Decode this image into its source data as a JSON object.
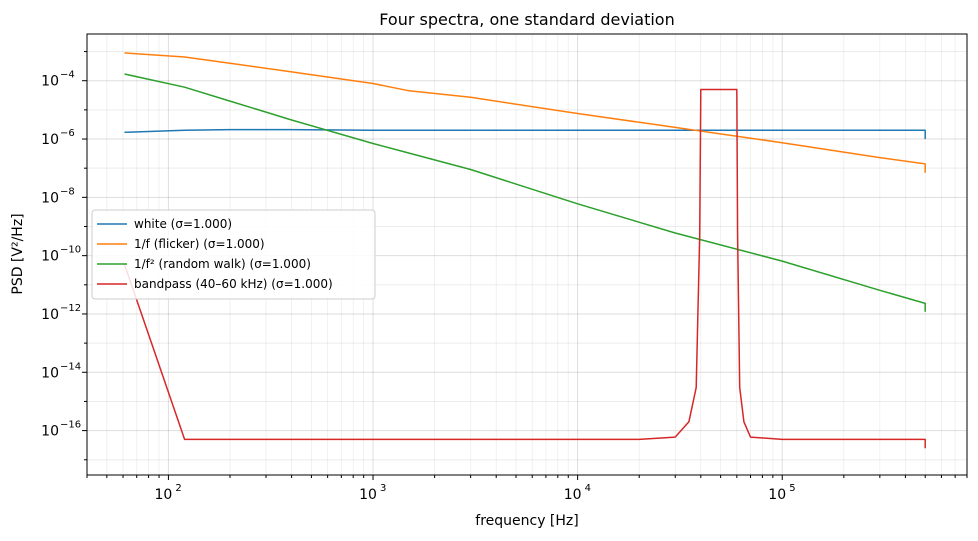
{
  "chart_data": {
    "type": "line",
    "title": "Four spectra, one standard deviation",
    "xlabel": "frequency [Hz]",
    "ylabel": "PSD  [V²/Hz]",
    "xscale": "log",
    "yscale": "log",
    "xlim": [
      40,
      800000
    ],
    "ylim": [
      3e-18,
      0.004
    ],
    "grid": "on (major and minor, both axes)",
    "legend_position": "center-left",
    "x_ticks": [
      {
        "value": 100,
        "base": "10",
        "exp": "2"
      },
      {
        "value": 1000,
        "base": "10",
        "exp": "3"
      },
      {
        "value": 10000,
        "base": "10",
        "exp": "4"
      },
      {
        "value": 100000,
        "base": "10",
        "exp": "5"
      }
    ],
    "y_ticks": [
      {
        "value": 1e-16,
        "base": "10",
        "exp": "−16"
      },
      {
        "value": 1e-14,
        "base": "10",
        "exp": "−14"
      },
      {
        "value": 1e-12,
        "base": "10",
        "exp": "−12"
      },
      {
        "value": 1e-10,
        "base": "10",
        "exp": "−10"
      },
      {
        "value": 1e-08,
        "base": "10",
        "exp": "−8"
      },
      {
        "value": 1e-06,
        "base": "10",
        "exp": "−6"
      },
      {
        "value": 0.0001,
        "base": "10",
        "exp": "−4"
      }
    ],
    "series": [
      {
        "name": "white  (σ=1.000)",
        "color": "#1f77b4",
        "points": [
          [
            61,
            1.7e-06
          ],
          [
            120,
            2e-06
          ],
          [
            200,
            2.1e-06
          ],
          [
            400,
            2.1e-06
          ],
          [
            1000,
            2e-06
          ],
          [
            3000,
            2e-06
          ],
          [
            10000,
            2e-06
          ],
          [
            30000,
            2e-06
          ],
          [
            100000,
            2e-06
          ],
          [
            300000,
            2e-06
          ],
          [
            500000,
            2e-06
          ],
          [
            500000,
            1e-06
          ]
        ]
      },
      {
        "name": "1/f (flicker)  (σ=1.000)",
        "color": "#ff7f0e",
        "points": [
          [
            61,
            0.0009
          ],
          [
            120,
            0.00065
          ],
          [
            200,
            0.0004
          ],
          [
            400,
            0.0002
          ],
          [
            1000,
            8e-05
          ],
          [
            1500,
            4.5e-05
          ],
          [
            3000,
            2.7e-05
          ],
          [
            10000,
            7.5e-06
          ],
          [
            30000,
            2.5e-06
          ],
          [
            100000,
            7.5e-07
          ],
          [
            300000,
            2.3e-07
          ],
          [
            500000,
            1.4e-07
          ],
          [
            500000,
            7e-08
          ]
        ]
      },
      {
        "name": "1/f² (random walk)  (σ=1.000)",
        "color": "#2ca02c",
        "points": [
          [
            61,
            0.00017
          ],
          [
            120,
            6e-05
          ],
          [
            200,
            2e-05
          ],
          [
            400,
            4.5e-06
          ],
          [
            1000,
            7e-07
          ],
          [
            1500,
            3.3e-07
          ],
          [
            3000,
            9e-08
          ],
          [
            10000,
            6e-09
          ],
          [
            30000,
            6e-10
          ],
          [
            100000,
            6.5e-11
          ],
          [
            300000,
            6.5e-12
          ],
          [
            500000,
            2.3e-12
          ],
          [
            500000,
            1.2e-12
          ]
        ]
      },
      {
        "name": "bandpass (40–60 kHz)  (σ=1.000)",
        "color": "#d62728",
        "points": [
          [
            61,
            5e-11
          ],
          [
            120,
            5e-17
          ],
          [
            500,
            5e-17
          ],
          [
            1000,
            5e-17
          ],
          [
            5000,
            5e-17
          ],
          [
            20000,
            5e-17
          ],
          [
            30000,
            6e-17
          ],
          [
            35000,
            2e-16
          ],
          [
            38000,
            3e-15
          ],
          [
            39500,
            5e-10
          ],
          [
            40000,
            5e-05
          ],
          [
            60000,
            5e-05
          ],
          [
            60500,
            5e-10
          ],
          [
            62000,
            3e-15
          ],
          [
            65000,
            2e-16
          ],
          [
            70000,
            6e-17
          ],
          [
            100000,
            5e-17
          ],
          [
            300000,
            5e-17
          ],
          [
            500000,
            5e-17
          ],
          [
            500000,
            2.5e-17
          ]
        ]
      }
    ]
  }
}
